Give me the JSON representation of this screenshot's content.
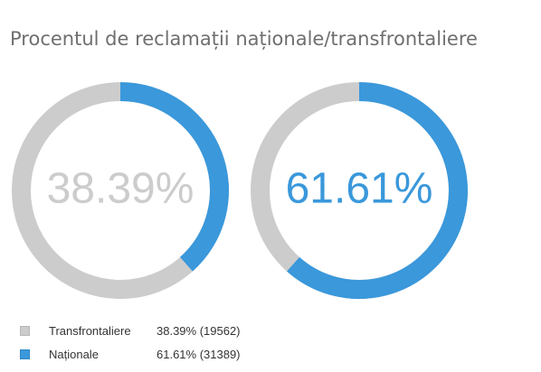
{
  "title": "Procentul de reclamații naționale/transfrontaliere",
  "colors": {
    "track": "#cccccc",
    "accent": "#3a98db",
    "title": "#6f6f6f",
    "legend_text": "#333333"
  },
  "chart_data": {
    "type": "pie",
    "title": "Procentul de reclamații naționale/transfrontaliere",
    "series": [
      {
        "name": "Transfrontaliere",
        "percent": 38.39,
        "count": 19562,
        "label": "38.39%",
        "color": "#cccccc"
      },
      {
        "name": "Naționale",
        "percent": 61.61,
        "count": 31389,
        "label": "61.61%",
        "color": "#3a98db"
      }
    ]
  },
  "legend": [
    {
      "label": "Transfrontaliere",
      "value": "38.39% (19562)",
      "color": "#cccccc"
    },
    {
      "label": "Naționale",
      "value": "61.61% (31389)",
      "color": "#3a98db"
    }
  ]
}
